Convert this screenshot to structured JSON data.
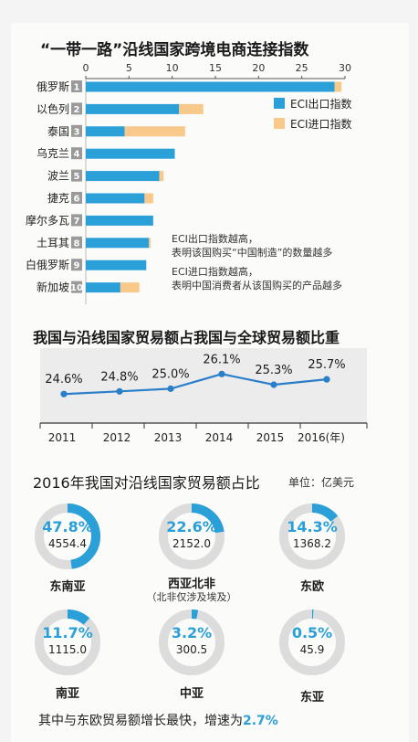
{
  "chart_data": [
    {
      "type": "bar",
      "stacked": true,
      "orientation": "horizontal",
      "title": "“一带一路”沿线国家跨境电商连接指数",
      "categories": [
        "俄罗斯",
        "以色列",
        "泰国",
        "乌克兰",
        "波兰",
        "捷克",
        "摩尔多瓦",
        "土耳其",
        "白俄罗斯",
        "新加坡"
      ],
      "ranks": [
        "1",
        "2",
        "3",
        "4",
        "5",
        "6",
        "7",
        "8",
        "9",
        "10"
      ],
      "series": [
        {
          "name": "ECI出口指数",
          "color": "#2a9fd8",
          "values": [
            28.8,
            10.8,
            4.5,
            10.3,
            8.5,
            6.8,
            7.8,
            7.3,
            7.0,
            4.0
          ]
        },
        {
          "name": "ECI进口指数",
          "color": "#f8c98a",
          "values": [
            0.8,
            2.8,
            7.0,
            0,
            0.5,
            1.0,
            0,
            0.2,
            0,
            2.2
          ]
        }
      ],
      "xlim": [
        0,
        30
      ],
      "xticks": [
        0,
        5,
        10,
        15,
        20,
        25,
        30
      ],
      "legend_position": "right",
      "notes": [
        [
          "ECI出口指数越高，",
          "表明该国购买“中国制造”的数量越多"
        ],
        [
          "ECI进口指数越高，",
          "表明中国消费者从该国购买的产品越多"
        ]
      ]
    },
    {
      "type": "line",
      "title": "我国与沿线国家贸易额占我国与全球贸易额比重",
      "x": [
        "2011",
        "2012",
        "2013",
        "2014",
        "2015",
        "2016(年)"
      ],
      "values": [
        24.6,
        24.8,
        25.0,
        26.1,
        25.3,
        25.7
      ],
      "labels": [
        "24.6%",
        "24.8%",
        "25.0%",
        "26.1%",
        "25.3%",
        "25.7%"
      ],
      "color": "#2a7fc8"
    },
    {
      "type": "pie",
      "title": "2016年我国对沿线国家贸易额占比",
      "unit": "单位：亿美元",
      "items": [
        {
          "name": "东南亚",
          "pct": 47.8,
          "pct_label": "47.8%",
          "value": "4554.4",
          "sub": ""
        },
        {
          "name": "西亚北非",
          "pct": 22.6,
          "pct_label": "22.6%",
          "value": "2152.0",
          "sub": "（北非仅涉及埃及）"
        },
        {
          "name": "东欧",
          "pct": 14.3,
          "pct_label": "14.3%",
          "value": "1368.2",
          "sub": ""
        },
        {
          "name": "南亚",
          "pct": 11.7,
          "pct_label": "11.7%",
          "value": "1115.0",
          "sub": ""
        },
        {
          "name": "中亚",
          "pct": 3.2,
          "pct_label": "3.2%",
          "value": "300.5",
          "sub": ""
        },
        {
          "name": "东亚",
          "pct": 0.5,
          "pct_label": "0.5%",
          "value": "45.9",
          "sub": ""
        }
      ],
      "accent": "#2a9fd8",
      "track": "#dcdcdc"
    }
  ],
  "footer": {
    "text": "其中与东欧贸易额增长最快，增速为",
    "highlight": "2.7%"
  }
}
